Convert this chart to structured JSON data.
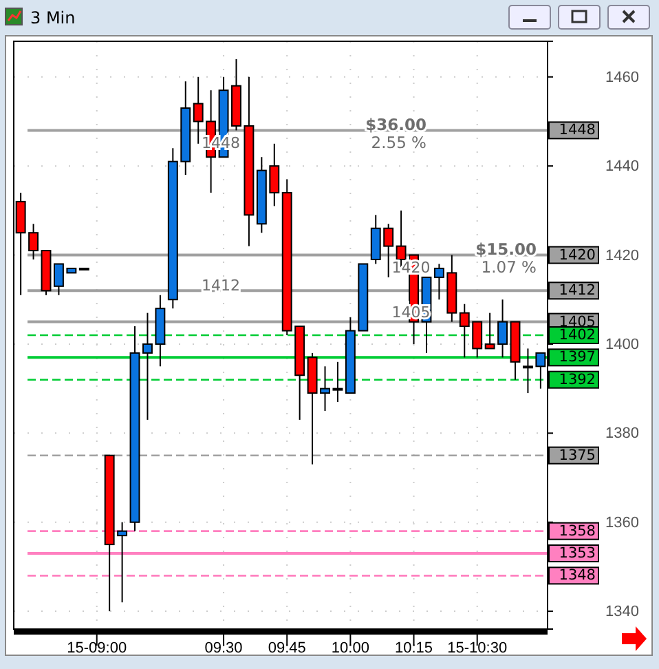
{
  "chart_data": {
    "type": "candlestick",
    "title": "3 Min",
    "categories": [
      null,
      null,
      null,
      null,
      null,
      null,
      "15-09:00",
      null,
      null,
      null,
      null,
      null,
      null,
      null,
      null,
      null,
      "09:30",
      null,
      null,
      null,
      null,
      "09:45",
      null,
      null,
      null,
      null,
      "10:00",
      null,
      null,
      null,
      null,
      "10:15",
      null,
      null,
      null,
      null,
      "15-10:30",
      null,
      null,
      null,
      null,
      null
    ],
    "ohlc": [
      [
        1432,
        1434,
        1411,
        1425
      ],
      [
        1425,
        1427,
        1419,
        1421
      ],
      [
        1421,
        1421,
        1411,
        1412
      ],
      [
        1413,
        1418,
        1411,
        1418
      ],
      [
        1416,
        1417,
        1416,
        1417
      ],
      [
        1417,
        1417,
        1417,
        1417
      ],
      null,
      [
        1375,
        1375,
        1340,
        1355
      ],
      [
        1357,
        1360,
        1342,
        1358
      ],
      [
        1360,
        1404,
        1358,
        1398
      ],
      [
        1398,
        1407,
        1383,
        1400
      ],
      [
        1400,
        1411,
        1395,
        1408
      ],
      [
        1410,
        1444,
        1408,
        1441
      ],
      [
        1441,
        1459,
        1438,
        1453
      ],
      [
        1454,
        1460,
        1445,
        1450
      ],
      [
        1450,
        1457,
        1434,
        1442
      ],
      [
        1442,
        1460,
        1442,
        1457
      ],
      [
        1458,
        1464,
        1448,
        1449
      ],
      [
        1449,
        1460,
        1422,
        1429
      ],
      [
        1427,
        1442,
        1425,
        1439
      ],
      [
        1440,
        1445,
        1431,
        1434
      ],
      [
        1434,
        1437,
        1402,
        1403
      ],
      [
        1404,
        1404,
        1383,
        1393
      ],
      [
        1397,
        1398,
        1373,
        1389
      ],
      [
        1389,
        1395,
        1385,
        1390
      ],
      [
        1390,
        1396,
        1387,
        1390
      ],
      [
        1389,
        1406,
        1389,
        1403
      ],
      [
        1403,
        1418,
        1403,
        1418
      ],
      [
        1419,
        1429,
        1418,
        1426
      ],
      [
        1426,
        1427,
        1415,
        1422
      ],
      [
        1422,
        1430,
        1416,
        1419
      ],
      [
        1420,
        1420,
        1400,
        1405
      ],
      [
        1405,
        1415,
        1398,
        1415
      ],
      [
        1415,
        1418,
        1410,
        1417
      ],
      [
        1416,
        1420,
        1405,
        1407
      ],
      [
        1407,
        1409,
        1397,
        1404
      ],
      [
        1405,
        1405,
        1397,
        1399
      ],
      [
        1400,
        1407,
        1399,
        1399
      ],
      [
        1400,
        1410,
        1397,
        1405
      ],
      [
        1405,
        1405,
        1392,
        1396
      ],
      [
        1395,
        1399,
        1389,
        1395
      ],
      [
        1395,
        1398,
        1390,
        1398
      ]
    ],
    "colors": [
      "#ff0000",
      "#ff0000",
      "#ff0000",
      "#0a74e0",
      "#0a74e0",
      "#000000",
      null,
      "#ff0000",
      "#0a74e0",
      "#0a74e0",
      "#0a74e0",
      "#0a74e0",
      "#0a74e0",
      "#0a74e0",
      "#ff0000",
      "#ff0000",
      "#0a74e0",
      "#ff0000",
      "#ff0000",
      "#0a74e0",
      "#ff0000",
      "#ff0000",
      "#ff0000",
      "#ff0000",
      "#0a74e0",
      "#000000",
      "#0a74e0",
      "#0a74e0",
      "#0a74e0",
      "#ff0000",
      "#ff0000",
      "#ff0000",
      "#0a74e0",
      "#0a74e0",
      "#ff0000",
      "#ff0000",
      "#ff0000",
      "#ff0000",
      "#0a74e0",
      "#ff0000",
      "#000000",
      "#0a74e0"
    ],
    "ylim": [
      1336,
      1468
    ],
    "yticks": [
      1340,
      1360,
      1380,
      1400,
      1420,
      1440,
      1460
    ],
    "grid": true,
    "ref_lines": [
      {
        "axis": "y",
        "value": 1448,
        "label": "1448",
        "color": "#a0a0a0",
        "line_style": "solid"
      },
      {
        "axis": "y",
        "value": 1420,
        "label": "1420",
        "color": "#a0a0a0",
        "line_style": "solid"
      },
      {
        "axis": "y",
        "value": 1412,
        "label": "1412",
        "color": "#a0a0a0",
        "line_style": "solid"
      },
      {
        "axis": "y",
        "value": 1405,
        "label": "1405",
        "color": "#a0a0a0",
        "line_style": "solid"
      },
      {
        "axis": "y",
        "value": 1402,
        "label": "1402",
        "color": "#00cc33",
        "line_style": "dashed"
      },
      {
        "axis": "y",
        "value": 1397,
        "label": "1397",
        "color": "#00cc33",
        "line_style": "solid"
      },
      {
        "axis": "y",
        "value": 1392,
        "label": "1392",
        "color": "#00cc33",
        "line_style": "dashed"
      },
      {
        "axis": "y",
        "value": 1375,
        "label": "1375",
        "color": "#a0a0a0",
        "line_style": "dashed"
      },
      {
        "axis": "y",
        "value": 1358,
        "label": "1358",
        "color": "#ff80c0",
        "line_style": "dashed"
      },
      {
        "axis": "y",
        "value": 1353,
        "label": "1353",
        "color": "#ff80c0",
        "line_style": "solid"
      },
      {
        "axis": "y",
        "value": 1348,
        "label": "1348",
        "color": "#ff80c0",
        "line_style": "dashed"
      }
    ],
    "annotations": [
      {
        "text": "$36.00",
        "y": 1449
      },
      "2.55 %",
      {
        "text": "$15.00",
        "y": 1421
      },
      "1.07 %",
      {
        "text": "1448",
        "x": "09:30",
        "y": 1445
      },
      {
        "text": "1412",
        "x": "09:30",
        "y": 1413
      },
      {
        "text": "1420",
        "x": "10:15",
        "y": 1417
      },
      {
        "text": "1405",
        "x": "10:15",
        "y": 1407
      }
    ]
  }
}
